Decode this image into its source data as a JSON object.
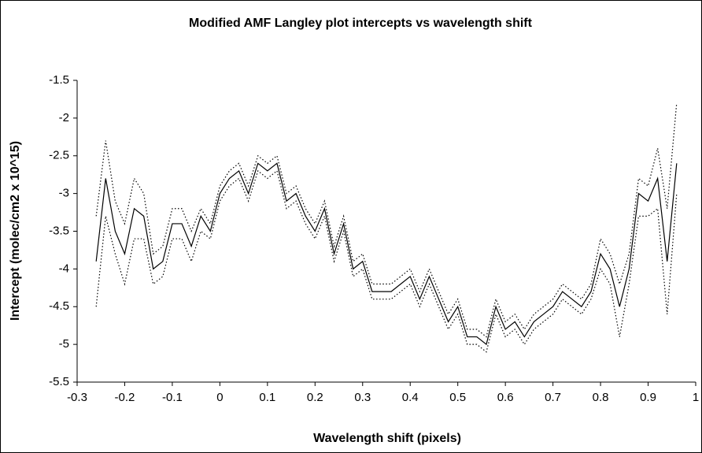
{
  "chart_data": {
    "type": "line",
    "title": "Modified AMF Langley plot intercepts vs wavelength shift",
    "x_label": "Wavelength shift (pixels)",
    "y_label": "Intercept (molec/cm2 x 10^15)",
    "x": [
      -0.26,
      -0.24,
      -0.22,
      -0.2,
      -0.18,
      -0.16,
      -0.14,
      -0.12,
      -0.1,
      -0.08,
      -0.06,
      -0.04,
      -0.02,
      0,
      0.02,
      0.04,
      0.06,
      0.08,
      0.1,
      0.12,
      0.14,
      0.16,
      0.18,
      0.2,
      0.22,
      0.24,
      0.26,
      0.28,
      0.3,
      0.32,
      0.34,
      0.36,
      0.38,
      0.4,
      0.42,
      0.44,
      0.46,
      0.48,
      0.5,
      0.52,
      0.54,
      0.56,
      0.58,
      0.6,
      0.62,
      0.64,
      0.66,
      0.68,
      0.7,
      0.72,
      0.74,
      0.76,
      0.78,
      0.8,
      0.82,
      0.84,
      0.86,
      0.88,
      0.9,
      0.92,
      0.94,
      0.96
    ],
    "series": [
      {
        "color": "#000000",
        "dash": "solid",
        "values": [
          -3.9,
          -2.8,
          -3.5,
          -3.8,
          -3.2,
          -3.3,
          -4.0,
          -3.9,
          -3.4,
          -3.4,
          -3.7,
          -3.3,
          -3.5,
          -3.0,
          -2.8,
          -2.7,
          -3.0,
          -2.6,
          -2.7,
          -2.6,
          -3.1,
          -3.0,
          -3.3,
          -3.5,
          -3.2,
          -3.8,
          -3.4,
          -4.0,
          -3.9,
          -4.3,
          -4.3,
          -4.3,
          -4.2,
          -4.1,
          -4.4,
          -4.1,
          -4.4,
          -4.7,
          -4.5,
          -4.9,
          -4.9,
          -5.0,
          -4.5,
          -4.8,
          -4.7,
          -4.9,
          -4.7,
          -4.6,
          -4.5,
          -4.3,
          -4.4,
          -4.5,
          -4.3,
          -3.8,
          -4.0,
          -4.5,
          -4.0,
          -3.0,
          -3.1,
          -2.8,
          -3.9,
          -2.6
        ]
      },
      {
        "color": "#000000",
        "dash": "dotted",
        "values": [
          -3.3,
          -2.3,
          -3.1,
          -3.4,
          -2.8,
          -3.0,
          -3.8,
          -3.7,
          -3.2,
          -3.2,
          -3.5,
          -3.2,
          -3.4,
          -2.9,
          -2.7,
          -2.6,
          -2.9,
          -2.5,
          -2.6,
          -2.5,
          -3.0,
          -2.9,
          -3.2,
          -3.4,
          -3.1,
          -3.7,
          -3.3,
          -3.9,
          -3.8,
          -4.2,
          -4.2,
          -4.2,
          -4.1,
          -4.0,
          -4.3,
          -4.0,
          -4.3,
          -4.6,
          -4.4,
          -4.8,
          -4.8,
          -4.9,
          -4.4,
          -4.7,
          -4.6,
          -4.8,
          -4.6,
          -4.5,
          -4.4,
          -4.2,
          -4.3,
          -4.4,
          -4.2,
          -3.6,
          -3.8,
          -4.2,
          -3.8,
          -2.8,
          -2.9,
          -2.4,
          -3.2,
          -1.8
        ]
      },
      {
        "color": "#000000",
        "dash": "dotted",
        "values": [
          -4.5,
          -3.3,
          -3.8,
          -4.2,
          -3.6,
          -3.6,
          -4.2,
          -4.1,
          -3.6,
          -3.6,
          -3.9,
          -3.5,
          -3.6,
          -3.1,
          -2.9,
          -2.8,
          -3.1,
          -2.7,
          -2.8,
          -2.7,
          -3.2,
          -3.1,
          -3.4,
          -3.6,
          -3.3,
          -3.9,
          -3.5,
          -4.1,
          -4.0,
          -4.4,
          -4.4,
          -4.4,
          -4.3,
          -4.2,
          -4.5,
          -4.2,
          -4.5,
          -4.8,
          -4.6,
          -5.0,
          -5.0,
          -5.1,
          -4.6,
          -4.9,
          -4.8,
          -5.0,
          -4.8,
          -4.7,
          -4.6,
          -4.4,
          -4.5,
          -4.6,
          -4.4,
          -4.0,
          -4.2,
          -4.9,
          -4.2,
          -3.3,
          -3.3,
          -3.2,
          -4.6,
          -3.0
        ]
      }
    ],
    "xlim": [
      -0.3,
      1
    ],
    "xticks": [
      -0.3,
      -0.2,
      -0.1,
      0,
      0.1,
      0.2,
      0.3,
      0.4,
      0.5,
      0.6,
      0.7,
      0.8,
      0.9,
      1
    ],
    "ylim": [
      -5.5,
      -1.5
    ],
    "yticks": [
      -5.5,
      -5,
      -4.5,
      -4,
      -3.5,
      -3,
      -2.5,
      -2,
      -1.5
    ],
    "grid": false
  }
}
